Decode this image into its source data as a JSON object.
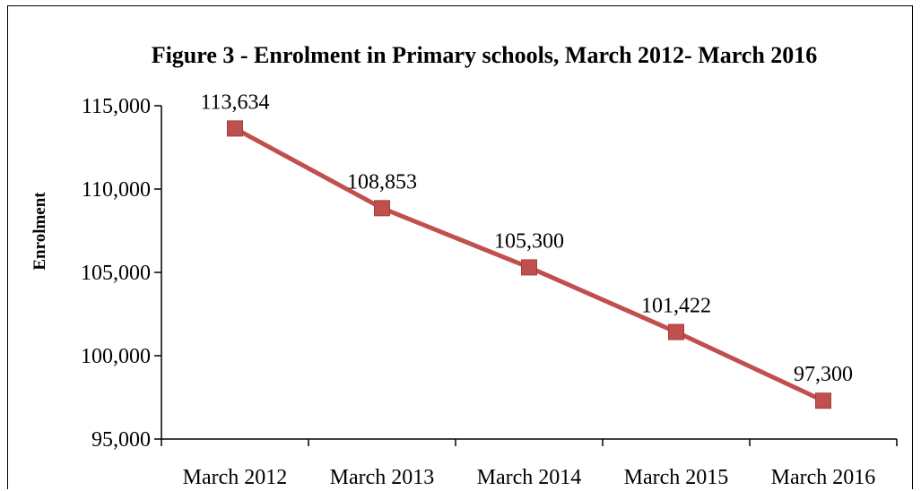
{
  "chart_data": {
    "type": "line",
    "title": "Figure 3 - Enrolment in Primary schools, March 2012- March 2016",
    "xlabel": "",
    "ylabel": "Enrolment",
    "categories": [
      "March 2012",
      "March 2013",
      "March 2014",
      "March 2015",
      "March 2016"
    ],
    "series": [
      {
        "values": [
          113634,
          108853,
          105300,
          101422,
          97300
        ],
        "labels": [
          "113,634",
          "108,853",
          "105,300",
          "101,422",
          "97,300"
        ],
        "color": "#c0504d"
      }
    ],
    "ylim": [
      95000,
      115000
    ],
    "yticks": [
      115000,
      110000,
      105000,
      100000,
      95000
    ],
    "ytick_labels": [
      "115,000",
      "110,000",
      "105,000",
      "100,000",
      "95,000"
    ],
    "marker": "square",
    "grid": false,
    "legend": "none"
  }
}
